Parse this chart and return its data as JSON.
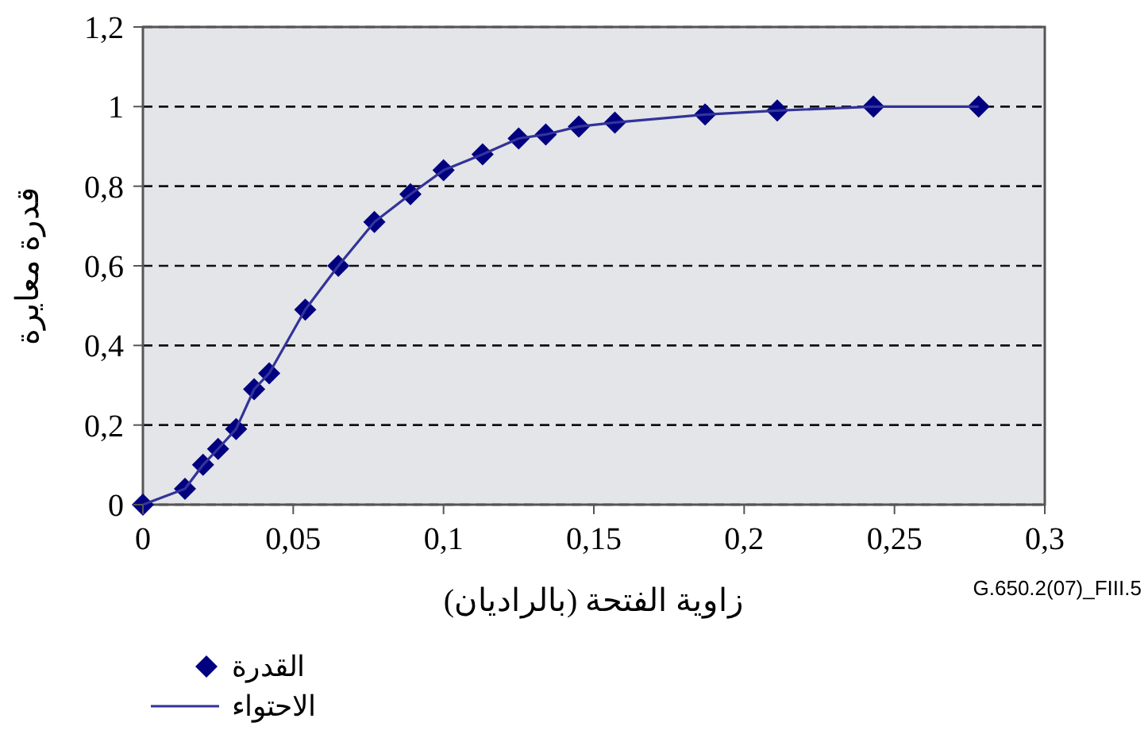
{
  "chart_data": {
    "type": "scatter",
    "xlabel": "زاوية الفتحة (بالراديان)",
    "ylabel": "قدرة معايرة",
    "annotations": [
      "G.650.2(07)_FIII.5"
    ],
    "xlim": [
      0,
      0.3
    ],
    "ylim": [
      0,
      1.2
    ],
    "xticks": [
      0,
      {
        "value": 0.05,
        "label": "0,05"
      },
      {
        "value": 0.1,
        "label": "0,1"
      },
      {
        "value": 0.15,
        "label": "0,15"
      },
      {
        "value": 0.2,
        "label": "0,2"
      },
      {
        "value": 0.25,
        "label": "0,25"
      },
      {
        "value": 0.3,
        "label": "0,3"
      }
    ],
    "yticks": [
      0,
      {
        "value": 0.2,
        "label": "0,2"
      },
      {
        "value": 0.4,
        "label": "0,4"
      },
      {
        "value": 0.6,
        "label": "0,6"
      },
      {
        "value": 0.8,
        "label": "0,8"
      },
      1,
      {
        "value": 1.2,
        "label": "1,2"
      }
    ],
    "grid": "y",
    "legend": "bottom left",
    "x": [
      0,
      0.014,
      0.02,
      0.025,
      0.031,
      0.037,
      0.042,
      0.054,
      0.065,
      0.077,
      0.089,
      0.1,
      0.113,
      0.125,
      0.134,
      0.145,
      0.157,
      0.187,
      0.211,
      0.243,
      0.278
    ],
    "series": [
      {
        "name": "القدرة",
        "marker": "diamond",
        "color": "#000080",
        "values": [
          0,
          0.04,
          0.1,
          0.14,
          0.19,
          0.29,
          0.33,
          0.49,
          0.6,
          0.71,
          0.78,
          0.84,
          0.88,
          0.92,
          0.93,
          0.95,
          0.96,
          0.98,
          0.99,
          1,
          1
        ]
      },
      {
        "name": "الاحتواء",
        "type": "line",
        "marker": "none",
        "color": "#33339a",
        "values": [
          0,
          0.04,
          0.1,
          0.14,
          0.19,
          0.29,
          0.33,
          0.49,
          0.6,
          0.71,
          0.78,
          0.84,
          0.88,
          0.92,
          0.93,
          0.95,
          0.96,
          0.98,
          0.99,
          1,
          1
        ]
      }
    ]
  }
}
